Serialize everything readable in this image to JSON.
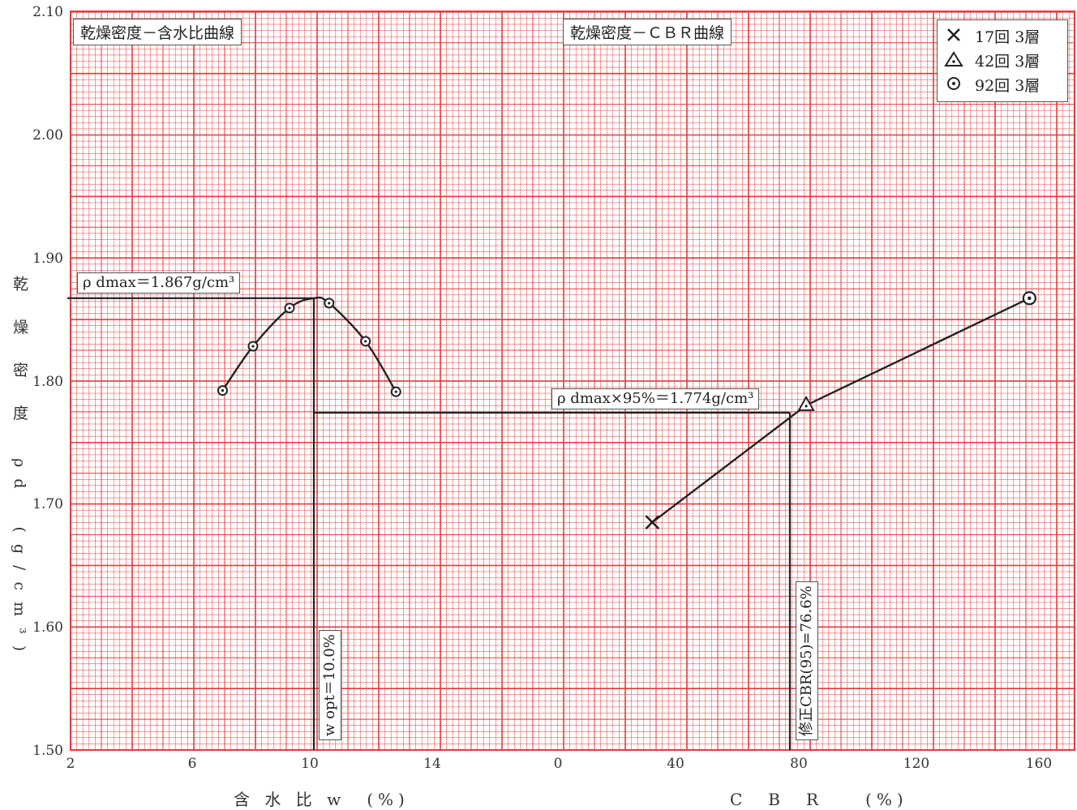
{
  "chart_data": [
    {
      "type": "line",
      "title": "乾燥密度－含水比曲線",
      "xlabel": "含 水 比 w　(%)",
      "ylabel": "乾 燥 密 度　ρd　(g/cm³)",
      "xlim": [
        2,
        17.3
      ],
      "ylim": [
        1.5,
        2.1
      ],
      "x_ticks": [
        "2",
        "6",
        "10",
        "14"
      ],
      "y_ticks": [
        "1.50",
        "1.60",
        "1.70",
        "1.80",
        "1.90",
        "2.00",
        "2.10"
      ],
      "series": [
        {
          "marker": "circle-dot",
          "x": [
            7.0,
            8.0,
            9.2,
            10.5,
            11.7,
            12.7
          ],
          "y": [
            1.792,
            1.828,
            1.859,
            1.863,
            1.832,
            1.791
          ]
        }
      ],
      "annotations": {
        "rho_dmax_label": "ρ dmax＝1.867g/cm³",
        "rho_dmax": 1.867,
        "w_opt_label": "w opt＝10.0%",
        "w_opt": 10.0
      }
    },
    {
      "type": "line",
      "title": "乾燥密度－ＣＢＲ曲線",
      "xlabel": "C　B　R　　(%)",
      "xlim": [
        0,
        166
      ],
      "ylim": [
        1.5,
        2.1
      ],
      "x_ticks": [
        "0",
        "40",
        "80",
        "120",
        "160"
      ],
      "series": [
        {
          "x": [
            31,
            82,
            156
          ],
          "y": [
            1.685,
            1.78,
            1.867
          ],
          "markers": [
            "x",
            "triangle",
            "circle-dot"
          ]
        }
      ],
      "legend": [
        {
          "symbol": "x",
          "label": "17回  3層"
        },
        {
          "symbol": "triangle",
          "label": "42回  3層"
        },
        {
          "symbol": "circle-dot",
          "label": "92回  3層"
        }
      ],
      "legend_position": "top-right",
      "annotations": {
        "rho_95_label": "ρ dmax×95%＝1.774g/cm³",
        "rho_95": 1.774,
        "cbr95_label": "修正CBR(95)=76.6%",
        "cbr95": 76.6
      }
    }
  ],
  "colors": {
    "grid": "#e63b3b",
    "ink": "#222222"
  }
}
